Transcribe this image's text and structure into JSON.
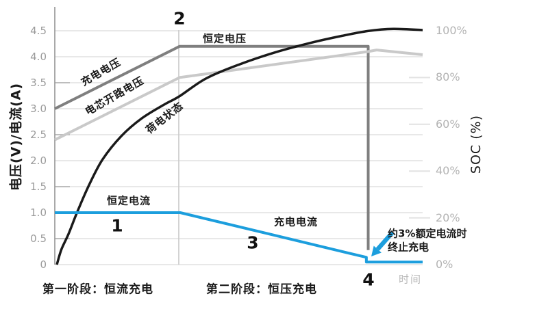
{
  "chart_data": {
    "type": "line",
    "title": "",
    "xlabel": "时间",
    "ylabel_left": "电压(V)/电流(A)",
    "ylabel_right": "SOC (%)",
    "grid": true,
    "x_axis": {
      "range": [
        0,
        100
      ]
    },
    "left_axis": {
      "label": "电压(V)/电流(A)",
      "range": [
        0,
        4.5
      ],
      "ticks": [
        {
          "label": "4.5",
          "value": 4.5
        },
        {
          "label": "4.0",
          "value": 4.0
        },
        {
          "label": "3.5",
          "value": 3.5
        },
        {
          "label": "3.0",
          "value": 3.0
        },
        {
          "label": "2.5",
          "value": 2.5
        },
        {
          "label": "2.0",
          "value": 2.0
        },
        {
          "label": "1.5",
          "value": 1.5
        },
        {
          "label": "1.0",
          "value": 1.0
        },
        {
          "label": "0.5",
          "value": 0.5
        },
        {
          "label": "0",
          "value": 0
        }
      ],
      "stub_ticks": [
        3.5,
        2.5,
        1.5,
        0.5
      ]
    },
    "right_axis": {
      "label": "SOC (%)",
      "range": [
        0,
        100
      ],
      "ticks": [
        {
          "label": "100%",
          "value": 100
        },
        {
          "label": "80%",
          "value": 80
        },
        {
          "label": "60%",
          "value": 60
        },
        {
          "label": "40%",
          "value": 40
        },
        {
          "label": "20%",
          "value": 20
        },
        {
          "label": "0%",
          "value": 0
        }
      ],
      "stub_ticks": [
        80,
        60,
        40,
        20
      ]
    },
    "phase_divider_x": 33.7,
    "series": [
      {
        "name": "充电电压",
        "axis": "left",
        "color": "#7f7f7f",
        "width": 4,
        "smooth": false,
        "points": [
          [
            0,
            3.0
          ],
          [
            33.9,
            4.2
          ],
          [
            85.2,
            4.2
          ],
          [
            85.2,
            0.28
          ]
        ]
      },
      {
        "name": "电芯开路电压",
        "axis": "left",
        "color": "#c9c9c9",
        "width": 4,
        "smooth": false,
        "points": [
          [
            0,
            2.4
          ],
          [
            33.9,
            3.6
          ],
          [
            85.2,
            4.1
          ],
          [
            87.5,
            4.13
          ],
          [
            100,
            4.04
          ]
        ]
      },
      {
        "name": "荷电状态",
        "axis": "right",
        "color": "#1a1a1a",
        "width": 3.5,
        "smooth": true,
        "points": [
          [
            0.56,
            0
          ],
          [
            1.8,
            6.5
          ],
          [
            3.7,
            13
          ],
          [
            6.1,
            22.5
          ],
          [
            9.3,
            34
          ],
          [
            13,
            45
          ],
          [
            18.1,
            55
          ],
          [
            23.6,
            62.5
          ],
          [
            29.8,
            68.5
          ],
          [
            33.9,
            72
          ],
          [
            41,
            79.5
          ],
          [
            50,
            85.5
          ],
          [
            60,
            90.8
          ],
          [
            70,
            95
          ],
          [
            78,
            97.8
          ],
          [
            85.1,
            99.9
          ],
          [
            92,
            100.8
          ],
          [
            100,
            100.3
          ]
        ]
      },
      {
        "name": "充电电流",
        "axis": "left",
        "color": "#1c9edd",
        "width": 4,
        "smooth": false,
        "points": [
          [
            0,
            1.0
          ],
          [
            34.1,
            1.0
          ],
          [
            84.7,
            0.14
          ],
          [
            84.7,
            0.05
          ],
          [
            100,
            0.05
          ]
        ]
      }
    ],
    "annotations": {
      "markers": [
        "1",
        "2",
        "3",
        "4"
      ],
      "termination_arrow": {
        "color": "#1c9edd",
        "from": [
          573,
          340
        ],
        "tip": [
          542,
          375
        ]
      }
    }
  },
  "labels": {
    "ylabel_left": "电压(V)/电流(A)",
    "ylabel_right": "SOC (%)",
    "xlabel": "时间",
    "marker1": "1",
    "marker2": "2",
    "marker3": "3",
    "marker4": "4",
    "constant_current": "恒定电流",
    "constant_voltage": "恒定电压",
    "charge_current": "充电电流",
    "charge_voltage": "充电电压",
    "open_circuit_voltage": "电芯开路电压",
    "state_of_charge": "荷电状态",
    "termination_note_line1": "约3%额定电流时",
    "termination_note_line2": "终止充电",
    "stage1": "第一阶段：恒流充电",
    "stage2": "第二阶段：恒压充电"
  },
  "colors": {
    "current_blue": "#1c9edd",
    "charge_voltage_gray": "#7f7f7f",
    "ocv_light_gray": "#c9c9c9",
    "soc_black": "#1a1a1a",
    "grid": "#d9d9d9",
    "axis_line": "#9a9a9a",
    "divider": "#cacaca",
    "stub_tick": "#e2e2e2",
    "left_stub_tick": "#bdbdbd",
    "tick_text": "#9a9a9a",
    "right_tick_text": "#b3b3b3",
    "time_text": "#b9b9b9"
  }
}
